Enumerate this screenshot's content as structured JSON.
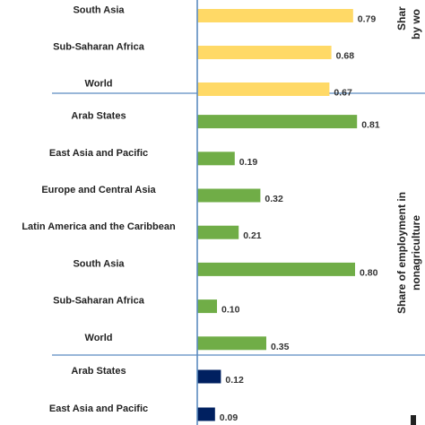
{
  "chart_data": {
    "type": "bar",
    "orientation": "horizontal",
    "grid": false,
    "xlim": [
      0,
      1
    ],
    "groups": [
      {
        "name": "Share ... by wo...",
        "side_label_lines": [
          "Shar",
          "by wo"
        ],
        "color": "#FFD966",
        "categories": [
          "South Asia",
          "Sub-Saharan Africa",
          "World"
        ],
        "values": [
          0.79,
          0.68,
          0.67
        ],
        "labels": [
          "0.79",
          "0.68",
          "0.67"
        ]
      },
      {
        "name": "Share of employment in nonagriculture",
        "side_label_lines": [
          "Share of employment in",
          "nonagriculture"
        ],
        "color": "#70AD47",
        "categories": [
          "Arab States",
          "East Asia and Pacific",
          "Europe and Central Asia",
          "Latin America and the Caribbean",
          "South Asia",
          "Sub-Saharan Africa",
          "World"
        ],
        "values": [
          0.81,
          0.19,
          0.32,
          0.21,
          0.8,
          0.1,
          0.35
        ],
        "labels": [
          "0.81",
          "0.19",
          "0.32",
          "0.21",
          "0.80",
          "0.10",
          "0.35"
        ]
      },
      {
        "name": "",
        "side_label_lines": [],
        "color": "#002060",
        "categories": [
          "Arab States",
          "East Asia and Pacific"
        ],
        "values": [
          0.12,
          0.09
        ],
        "labels": [
          "0.12",
          "0.09"
        ]
      }
    ]
  }
}
